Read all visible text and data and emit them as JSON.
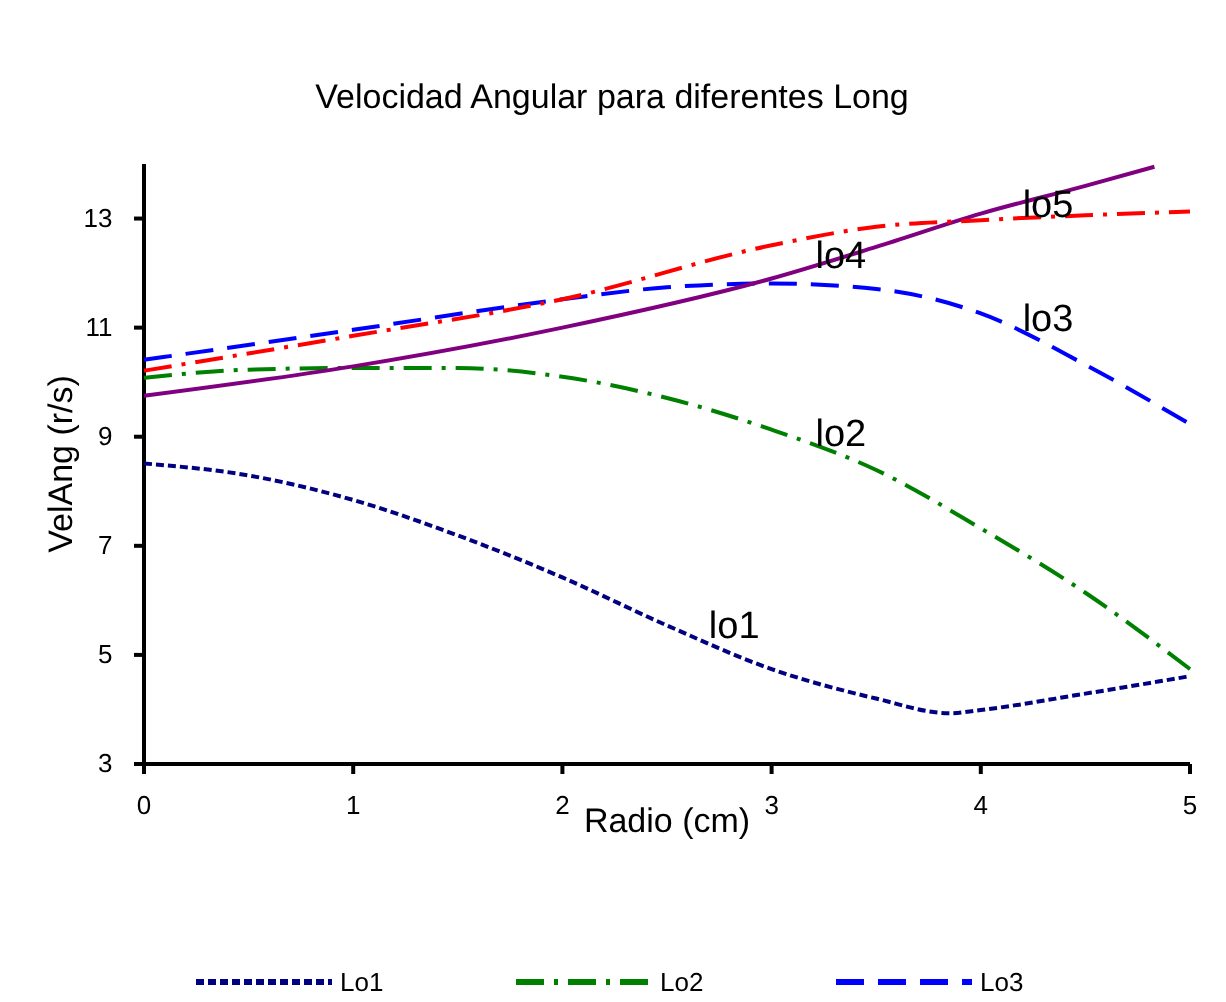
{
  "chart_data": {
    "type": "line",
    "title": "Velocidad Angular para diferentes Long",
    "xlabel": "Radio (cm)",
    "ylabel": "VelAng (r/s)",
    "xlim": [
      0,
      5
    ],
    "xticks": [
      0,
      1,
      2,
      3,
      4,
      5
    ],
    "ylim": [
      3,
      14
    ],
    "yticks": [
      3,
      5,
      7,
      9,
      11,
      13
    ],
    "grid": false,
    "legend": "bottom",
    "marker": "none",
    "series": [
      {
        "name": "Lo1",
        "color": "#000080",
        "line_style": "dotted",
        "x": [
          0,
          0.5,
          1,
          1.5,
          2,
          2.5,
          3,
          3.5,
          3.85,
          4,
          4.5,
          5
        ],
        "values": [
          8.51,
          8.29,
          7.84,
          7.19,
          6.42,
          5.54,
          4.74,
          4.2,
          3.93,
          3.99,
          4.29,
          4.61
        ]
      },
      {
        "name": "Lo2",
        "color": "#008000",
        "line_style": "dashdot",
        "x": [
          0,
          0.5,
          1,
          1.5,
          2,
          2.5,
          3,
          3.5,
          4,
          4.5,
          5
        ],
        "values": [
          10.08,
          10.23,
          10.26,
          10.26,
          10.1,
          9.71,
          9.13,
          8.39,
          7.32,
          6.14,
          4.74
        ]
      },
      {
        "name": "Lo3",
        "color": "#0000ff",
        "line_style": "dashed",
        "x": [
          0,
          1,
          2,
          2.5,
          3,
          3.5,
          4,
          4.5,
          5
        ],
        "values": [
          10.41,
          10.96,
          11.52,
          11.74,
          11.81,
          11.71,
          11.26,
          10.32,
          9.23
        ]
      },
      {
        "color": "#800080",
        "line_style": "solid",
        "x": [
          0,
          1,
          2,
          3,
          3.5,
          4,
          4.5,
          4.83
        ],
        "values": [
          9.75,
          10.29,
          11.0,
          11.9,
          12.48,
          13.09,
          13.6,
          13.95
        ]
      },
      {
        "color": "#ff0000",
        "line_style": "dashdot",
        "x": [
          0,
          1,
          2,
          3,
          3.5,
          4,
          4.5,
          5
        ],
        "values": [
          10.21,
          10.85,
          11.52,
          12.51,
          12.85,
          12.97,
          13.06,
          13.13
        ]
      }
    ],
    "annotations": [
      {
        "text": "lo1",
        "x": 2.7,
        "y": 5.28
      },
      {
        "text": "lo2",
        "x": 3.21,
        "y": 8.8
      },
      {
        "text": "lo3",
        "x": 4.2,
        "y": 10.9
      },
      {
        "text": "lo4",
        "x": 3.21,
        "y": 12.05
      },
      {
        "text": "lo5",
        "x": 4.2,
        "y": 13.0
      }
    ]
  }
}
